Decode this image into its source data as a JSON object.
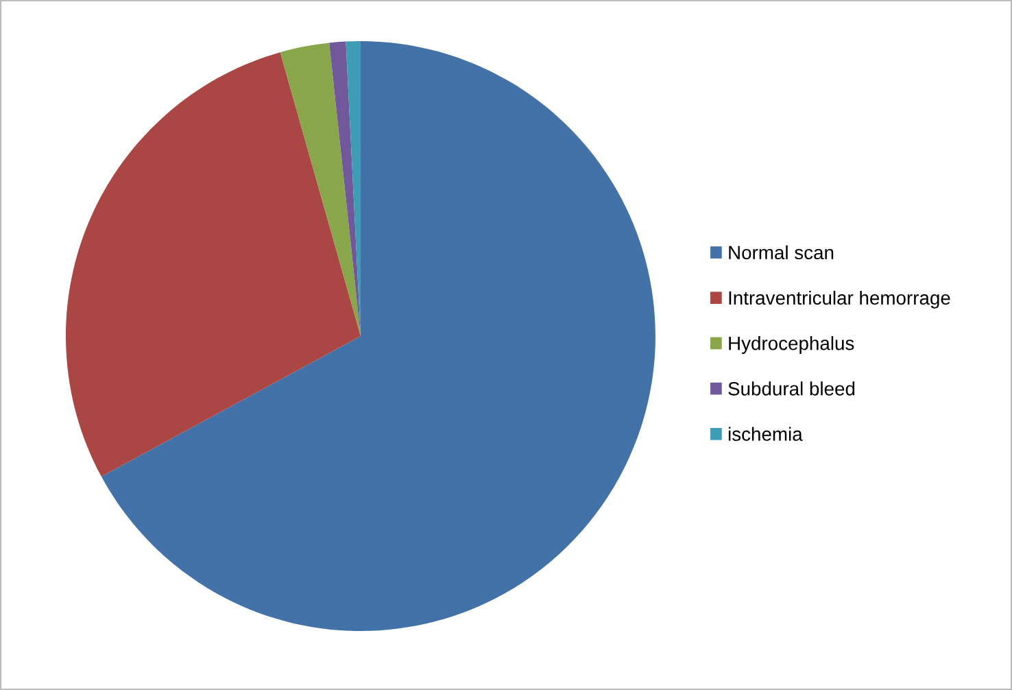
{
  "chart_data": {
    "type": "pie",
    "categories": [
      "Normal scan",
      "Intraventricular hemorrage",
      "Hydrocephalus",
      "Subdural bleed",
      "ischemia"
    ],
    "values": [
      67.1,
      28.5,
      2.7,
      0.9,
      0.8
    ],
    "colors": [
      "#4372a8",
      "#aa4643",
      "#8aa64a",
      "#70589a",
      "#3f9cb5"
    ],
    "legend": "right"
  }
}
